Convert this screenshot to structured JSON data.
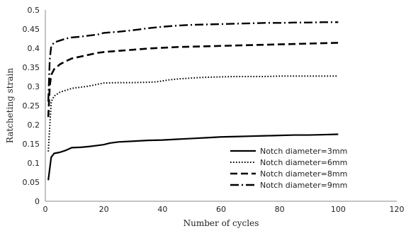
{
  "chart_data": {
    "type": "line",
    "xlabel": "Number of cycles",
    "ylabel": "Ratcheting strain",
    "xlim": [
      0,
      120
    ],
    "ylim": [
      0,
      0.5
    ],
    "xticks": [
      "0",
      "20",
      "40",
      "60",
      "80",
      "100",
      "120"
    ],
    "yticks": [
      "0",
      "0.05",
      "0.1",
      "0.15",
      "0.2",
      "0.25",
      "0.3",
      "0.35",
      "0.4",
      "0.45",
      "0.5"
    ],
    "grid": false,
    "legend_position": "lower-right",
    "series": [
      {
        "name": "Notch diameter=3mm",
        "dash": "solid",
        "color": "#000000",
        "x": [
          1,
          2,
          3,
          5,
          7,
          9,
          12,
          15,
          18,
          20,
          22,
          25,
          30,
          35,
          40,
          45,
          50,
          55,
          60,
          65,
          70,
          75,
          80,
          85,
          90,
          95,
          100
        ],
        "y": [
          0.055,
          0.115,
          0.125,
          0.128,
          0.133,
          0.14,
          0.141,
          0.143,
          0.146,
          0.148,
          0.152,
          0.155,
          0.157,
          0.159,
          0.16,
          0.162,
          0.164,
          0.166,
          0.168,
          0.169,
          0.17,
          0.171,
          0.172,
          0.173,
          0.173,
          0.174,
          0.175
        ]
      },
      {
        "name": "Notch diameter=6mm",
        "dash": "dotted",
        "color": "#000000",
        "x": [
          1,
          2,
          3,
          5,
          7,
          9,
          12,
          15,
          18,
          20,
          25,
          30,
          35,
          38,
          42,
          46,
          50,
          55,
          60,
          65,
          70,
          75,
          80,
          85,
          90,
          95,
          100
        ],
        "y": [
          0.13,
          0.26,
          0.275,
          0.285,
          0.29,
          0.295,
          0.298,
          0.301,
          0.306,
          0.309,
          0.31,
          0.31,
          0.311,
          0.312,
          0.317,
          0.32,
          0.322,
          0.324,
          0.325,
          0.326,
          0.326,
          0.326,
          0.327,
          0.327,
          0.327,
          0.327,
          0.327
        ]
      },
      {
        "name": "Notch diameter=8mm",
        "dash": "dashed",
        "color": "#000000",
        "x": [
          1,
          1.5,
          2,
          3,
          5,
          7,
          9,
          12,
          15,
          18,
          20,
          25,
          30,
          35,
          40,
          45,
          50,
          55,
          60,
          65,
          70,
          75,
          80,
          85,
          90,
          95,
          100
        ],
        "y": [
          0.22,
          0.3,
          0.33,
          0.345,
          0.358,
          0.366,
          0.373,
          0.378,
          0.383,
          0.388,
          0.39,
          0.393,
          0.396,
          0.399,
          0.401,
          0.403,
          0.404,
          0.405,
          0.406,
          0.407,
          0.408,
          0.409,
          0.41,
          0.411,
          0.412,
          0.413,
          0.414
        ]
      },
      {
        "name": "Notch diameter=9mm",
        "dash": "dash-dot",
        "color": "#000000",
        "x": [
          1,
          1.5,
          2,
          3,
          5,
          7,
          9,
          12,
          15,
          18,
          20,
          25,
          30,
          35,
          40,
          45,
          50,
          55,
          60,
          65,
          70,
          75,
          80,
          85,
          90,
          95,
          100
        ],
        "y": [
          0.26,
          0.37,
          0.405,
          0.415,
          0.42,
          0.425,
          0.428,
          0.43,
          0.433,
          0.436,
          0.44,
          0.443,
          0.447,
          0.452,
          0.456,
          0.459,
          0.461,
          0.462,
          0.463,
          0.464,
          0.465,
          0.466,
          0.466,
          0.467,
          0.467,
          0.468,
          0.468
        ]
      }
    ]
  }
}
